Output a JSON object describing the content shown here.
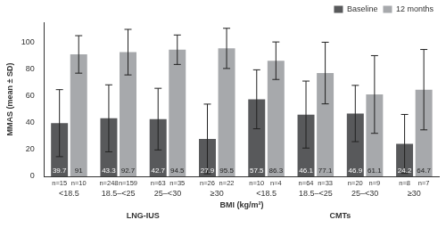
{
  "chart_data": {
    "type": "bar",
    "y_label": "MMAS (mean ± SD)",
    "x_label": "BMI (kg/m²)",
    "categories": [
      "<18.5",
      "18.5–<25",
      "25–<30",
      "≥30",
      "<18.5",
      "18.5–<25",
      "25–<30",
      "≥30"
    ],
    "category_groups": [
      {
        "name": "LNG-IUS",
        "start": 0,
        "end": 3
      },
      {
        "name": "CMTs",
        "start": 4,
        "end": 7
      }
    ],
    "series": [
      {
        "name": "Baseline",
        "color": "#58595b",
        "values": [
          39.7,
          43.3,
          42.7,
          27.9,
          57.5,
          46.1,
          46.9,
          24.2
        ],
        "errors": [
          25,
          25,
          23,
          26,
          22,
          25,
          21,
          22
        ],
        "n_labels": [
          "n=15",
          "n=248",
          "n=63",
          "n=26",
          "n=10",
          "n=64",
          "n=20",
          "n=8"
        ]
      },
      {
        "name": "12 months",
        "color": "#a7a9ac",
        "values": [
          91,
          92.7,
          94.5,
          95.5,
          86.3,
          77.1,
          61.1,
          64.7
        ],
        "errors": [
          14,
          17,
          11,
          15,
          14,
          23,
          29,
          30
        ],
        "n_labels": [
          "n=10",
          "n=159",
          "n=35",
          "n=22",
          "n=4",
          "n=33",
          "n=9",
          "n=7"
        ]
      }
    ],
    "ylim": [
      0,
      115
    ],
    "yticks": [
      0,
      20,
      40,
      60,
      80,
      100
    ],
    "grid": false,
    "legend": "top-right",
    "data_labels": true
  }
}
